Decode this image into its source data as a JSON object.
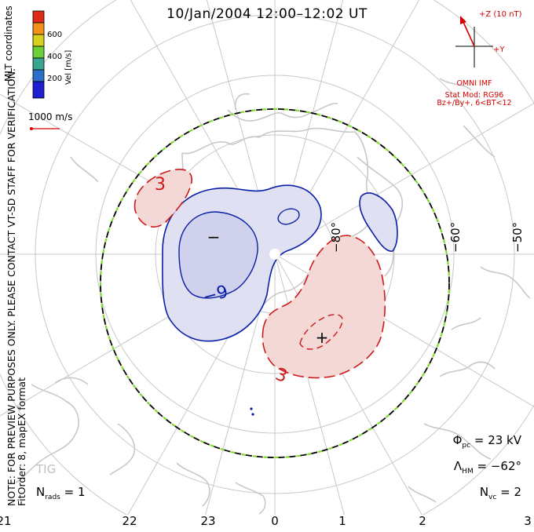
{
  "title": "10/Jan/2004 12:00–12:02 UT",
  "side_note_line1": "NOTE: FOR PREVIEW PURPOSES ONLY. PLEASE CONTACT VT-SD STAFF FOR VERIFICATION.",
  "side_note_line2": "FitOrder: 8, mapEX format",
  "coordinates_label": "MLT coordinates",
  "colorbar": {
    "label": "Vel [m/s]",
    "ticks": [
      "600",
      "400",
      "200"
    ],
    "colors": [
      "#1f1fd0",
      "#2a6fc8",
      "#3aa58e",
      "#6ccf3a",
      "#d8d020",
      "#f29018",
      "#e02a18"
    ]
  },
  "velocity_scale": {
    "label": "1000 m/s",
    "color": "#d40000"
  },
  "imf": {
    "z_label": "+Z (10 nT)",
    "y_label": "+Y",
    "source": "OMNI IMF",
    "model": "Stat Mod: RG96",
    "model_params": "Bz+/By+, 6<BT<12"
  },
  "mlt_labels": [
    "21",
    "22",
    "23",
    "0",
    "1",
    "2",
    "3"
  ],
  "latitude_labels": [
    "−80°",
    "−60°",
    "−50°"
  ],
  "contour_labels": [
    "3",
    "−9",
    "3"
  ],
  "potential_markers": {
    "min": "−",
    "max": "+"
  },
  "stats": {
    "phi_pc_symbol": "Φ",
    "phi_pc_sub": "pc",
    "phi_pc_value": "= 23 kV",
    "lambda_hm_symbol": "Λ",
    "lambda_hm_sub": "HM",
    "lambda_hm_value": "= −62°",
    "nvc_symbol": "N",
    "nvc_sub": "vc",
    "nvc_value": "= 2",
    "nrads_symbol": "N",
    "nrads_sub": "rads",
    "nrads_value": "= 1"
  },
  "station_code": "TIG",
  "colors": {
    "negative_contour": "#0a1fa8",
    "positive_contour": "#cc1a1a",
    "negative_fill": "#dfe0f2",
    "positive_fill": "#f4d8d6",
    "coastline": "#c8c8c8",
    "grid": "#c8c8c8",
    "boundary_green": "#7fdc2c"
  }
}
